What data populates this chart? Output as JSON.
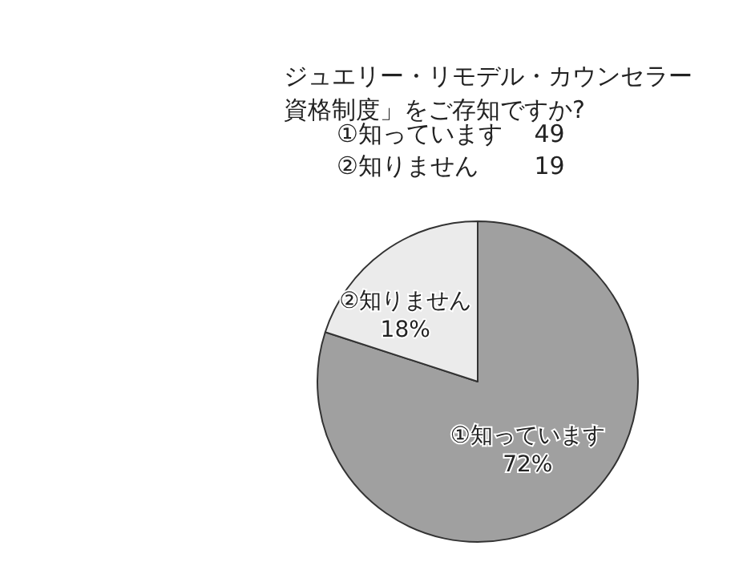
{
  "chart_data": {
    "type": "pie",
    "title": "ジュエリー・リモデル・カウンセラー資格制度」をご存知ですか?",
    "annotations": [
      "①知っています　 49",
      "②知りません　　 19"
    ],
    "categories": [
      "①知っています",
      "②知りません"
    ],
    "values": [
      72,
      18
    ],
    "value_labels": [
      "72%",
      "18%"
    ],
    "colors": [
      "#a0a0a0",
      "#ebebeb"
    ],
    "legend": false
  }
}
